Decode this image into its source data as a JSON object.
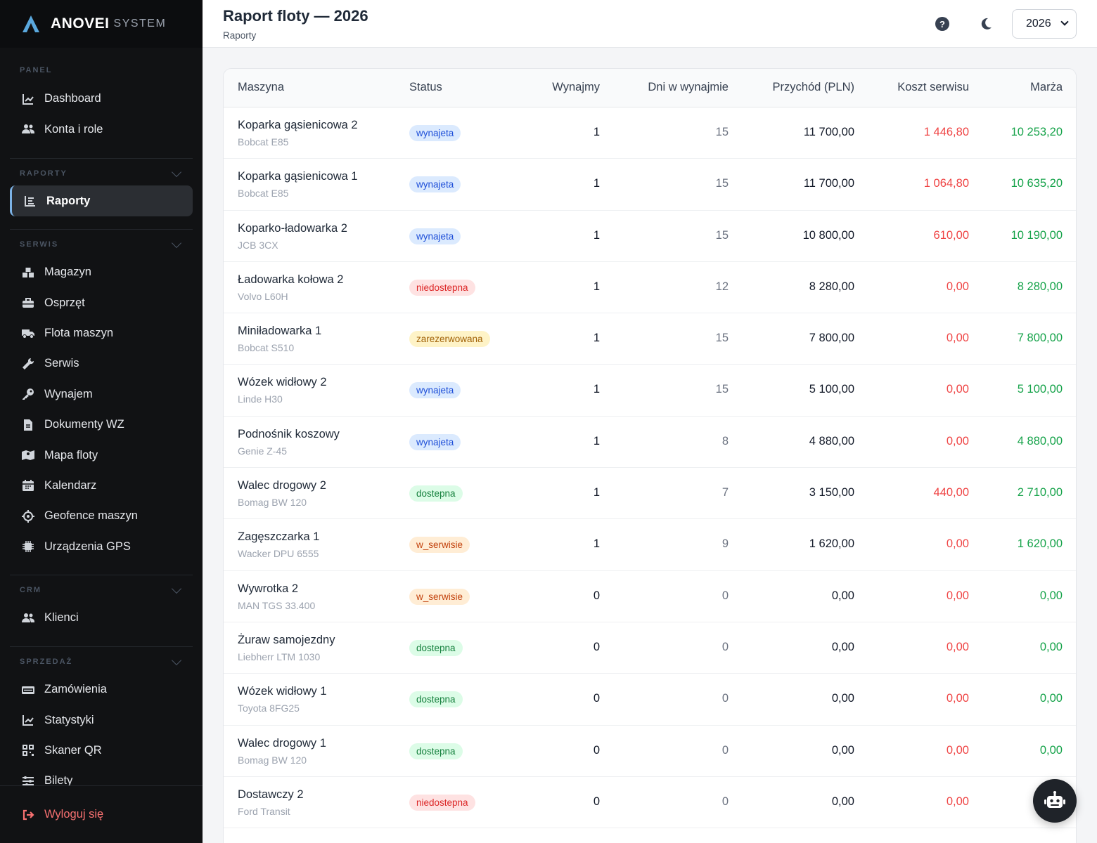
{
  "brand": {
    "name": "ANOVEI",
    "sub": "SYSTEM"
  },
  "sidebar": {
    "panel": {
      "title": "PANEL",
      "items": [
        {
          "label": "Dashboard",
          "icon": "chart-line-icon"
        },
        {
          "label": "Konta i role",
          "icon": "users-icon"
        }
      ]
    },
    "raporty": {
      "title": "RAPORTY",
      "items": [
        {
          "label": "Raporty",
          "icon": "report-icon",
          "active": true
        }
      ]
    },
    "serwis": {
      "title": "SERWIS",
      "items": [
        {
          "label": "Magazyn",
          "icon": "warehouse-icon"
        },
        {
          "label": "Osprzęt",
          "icon": "toolbox-icon"
        },
        {
          "label": "Flota maszyn",
          "icon": "truck-icon"
        },
        {
          "label": "Serwis",
          "icon": "wrench-icon"
        },
        {
          "label": "Wynajem",
          "icon": "key-icon"
        },
        {
          "label": "Dokumenty WZ",
          "icon": "document-icon"
        },
        {
          "label": "Mapa floty",
          "icon": "map-icon"
        },
        {
          "label": "Kalendarz",
          "icon": "calendar-icon"
        },
        {
          "label": "Geofence maszyn",
          "icon": "crosshair-icon"
        },
        {
          "label": "Urządzenia GPS",
          "icon": "chip-icon"
        }
      ]
    },
    "crm": {
      "title": "CRM",
      "items": [
        {
          "label": "Klienci",
          "icon": "users-icon"
        }
      ]
    },
    "sprzedaz": {
      "title": "SPRZEDAŻ",
      "items": [
        {
          "label": "Zamówienia",
          "icon": "cash-icon"
        },
        {
          "label": "Statystyki",
          "icon": "chart-line-icon"
        },
        {
          "label": "Skaner QR",
          "icon": "qr-icon"
        },
        {
          "label": "Bilety",
          "icon": "sliders-icon"
        }
      ]
    },
    "logout": "Wyloguj się"
  },
  "header": {
    "title": "Raport floty — 2026",
    "subtitle": "Raporty",
    "year": "2026"
  },
  "table": {
    "columns": [
      "Maszyna",
      "Status",
      "Wynajmy",
      "Dni w wynajmie",
      "Przychód (PLN)",
      "Koszt serwisu",
      "Marża"
    ],
    "rows": [
      {
        "name": "Koparka gąsienicowa 2",
        "model": "Bobcat E85",
        "status": "wynajeta",
        "rentals": "1",
        "days": "15",
        "revenue": "11 700,00",
        "cost": "1 446,80",
        "margin": "10 253,20"
      },
      {
        "name": "Koparka gąsienicowa 1",
        "model": "Bobcat E85",
        "status": "wynajeta",
        "rentals": "1",
        "days": "15",
        "revenue": "11 700,00",
        "cost": "1 064,80",
        "margin": "10 635,20"
      },
      {
        "name": "Koparko-ładowarka 2",
        "model": "JCB 3CX",
        "status": "wynajeta",
        "rentals": "1",
        "days": "15",
        "revenue": "10 800,00",
        "cost": "610,00",
        "margin": "10 190,00"
      },
      {
        "name": "Ładowarka kołowa 2",
        "model": "Volvo L60H",
        "status": "niedostepna",
        "rentals": "1",
        "days": "12",
        "revenue": "8 280,00",
        "cost": "0,00",
        "margin": "8 280,00"
      },
      {
        "name": "Miniładowarka 1",
        "model": "Bobcat S510",
        "status": "zarezerwowana",
        "rentals": "1",
        "days": "15",
        "revenue": "7 800,00",
        "cost": "0,00",
        "margin": "7 800,00"
      },
      {
        "name": "Wózek widłowy 2",
        "model": "Linde H30",
        "status": "wynajeta",
        "rentals": "1",
        "days": "15",
        "revenue": "5 100,00",
        "cost": "0,00",
        "margin": "5 100,00"
      },
      {
        "name": "Podnośnik koszowy",
        "model": "Genie Z-45",
        "status": "wynajeta",
        "rentals": "1",
        "days": "8",
        "revenue": "4 880,00",
        "cost": "0,00",
        "margin": "4 880,00"
      },
      {
        "name": "Walec drogowy 2",
        "model": "Bomag BW 120",
        "status": "dostepna",
        "rentals": "1",
        "days": "7",
        "revenue": "3 150,00",
        "cost": "440,00",
        "margin": "2 710,00"
      },
      {
        "name": "Zagęszczarka 1",
        "model": "Wacker DPU 6555",
        "status": "w_serwisie",
        "rentals": "1",
        "days": "9",
        "revenue": "1 620,00",
        "cost": "0,00",
        "margin": "1 620,00"
      },
      {
        "name": "Wywrotka 2",
        "model": "MAN TGS 33.400",
        "status": "w_serwisie",
        "rentals": "0",
        "days": "0",
        "revenue": "0,00",
        "cost": "0,00",
        "margin": "0,00"
      },
      {
        "name": "Żuraw samojezdny",
        "model": "Liebherr LTM 1030",
        "status": "dostepna",
        "rentals": "0",
        "days": "0",
        "revenue": "0,00",
        "cost": "0,00",
        "margin": "0,00"
      },
      {
        "name": "Wózek widłowy 1",
        "model": "Toyota 8FG25",
        "status": "dostepna",
        "rentals": "0",
        "days": "0",
        "revenue": "0,00",
        "cost": "0,00",
        "margin": "0,00"
      },
      {
        "name": "Walec drogowy 1",
        "model": "Bomag BW 120",
        "status": "dostepna",
        "rentals": "0",
        "days": "0",
        "revenue": "0,00",
        "cost": "0,00",
        "margin": "0,00"
      },
      {
        "name": "Dostawczy 2",
        "model": "Ford Transit",
        "status": "niedostepna",
        "rentals": "0",
        "days": "0",
        "revenue": "0,00",
        "cost": "0,00",
        "margin": ""
      }
    ]
  }
}
